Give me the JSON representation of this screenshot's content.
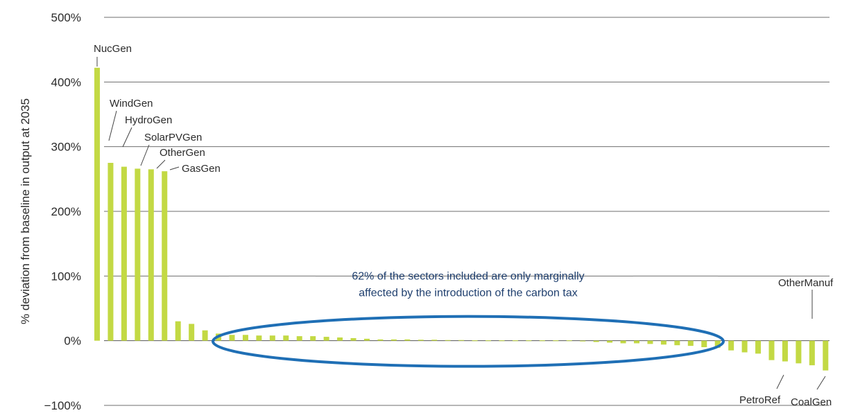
{
  "chart_data": {
    "type": "bar",
    "ylabel": "% deviation from baseline in output at 2035",
    "ylim": [
      -100,
      500
    ],
    "yticks": [
      -100,
      0,
      100,
      200,
      300,
      400,
      500
    ],
    "ytick_labels": [
      "−100%",
      "0%",
      "100%",
      "200%",
      "300%",
      "400%",
      "500%"
    ],
    "grid": true,
    "bar_color": "#c3d944",
    "highlight_color": "#1f6fb5",
    "values": [
      422,
      275,
      269,
      266,
      265,
      262,
      30,
      26,
      16,
      11,
      9,
      9,
      8,
      8,
      8,
      7,
      7,
      6,
      5,
      4,
      3,
      2,
      2,
      2,
      1.5,
      1.5,
      1,
      1,
      0.5,
      0.5,
      0.5,
      0.5,
      0.5,
      0.5,
      0.5,
      0.5,
      -1,
      -2,
      -3,
      -4,
      -4,
      -5,
      -6,
      -7,
      -8,
      -10,
      -11,
      -15,
      -18,
      -20,
      -30,
      -32,
      -35,
      -38,
      -46
    ],
    "labeled_bars": [
      {
        "index": 0,
        "label": "NucGen"
      },
      {
        "index": 1,
        "label": "WindGen"
      },
      {
        "index": 2,
        "label": "HydroGen"
      },
      {
        "index": 3,
        "label": "SolarPVGen"
      },
      {
        "index": 4,
        "label": "OtherGen"
      },
      {
        "index": 5,
        "label": "GasGen"
      },
      {
        "index": 51,
        "label": "PetroRef"
      },
      {
        "index": 53,
        "label": "OtherManuf"
      },
      {
        "index": 54,
        "label": "CoalGen"
      }
    ],
    "annotation": {
      "lines": [
        "62% of the sectors included are only marginally",
        "affected by the introduction of the carbon tax"
      ]
    }
  }
}
